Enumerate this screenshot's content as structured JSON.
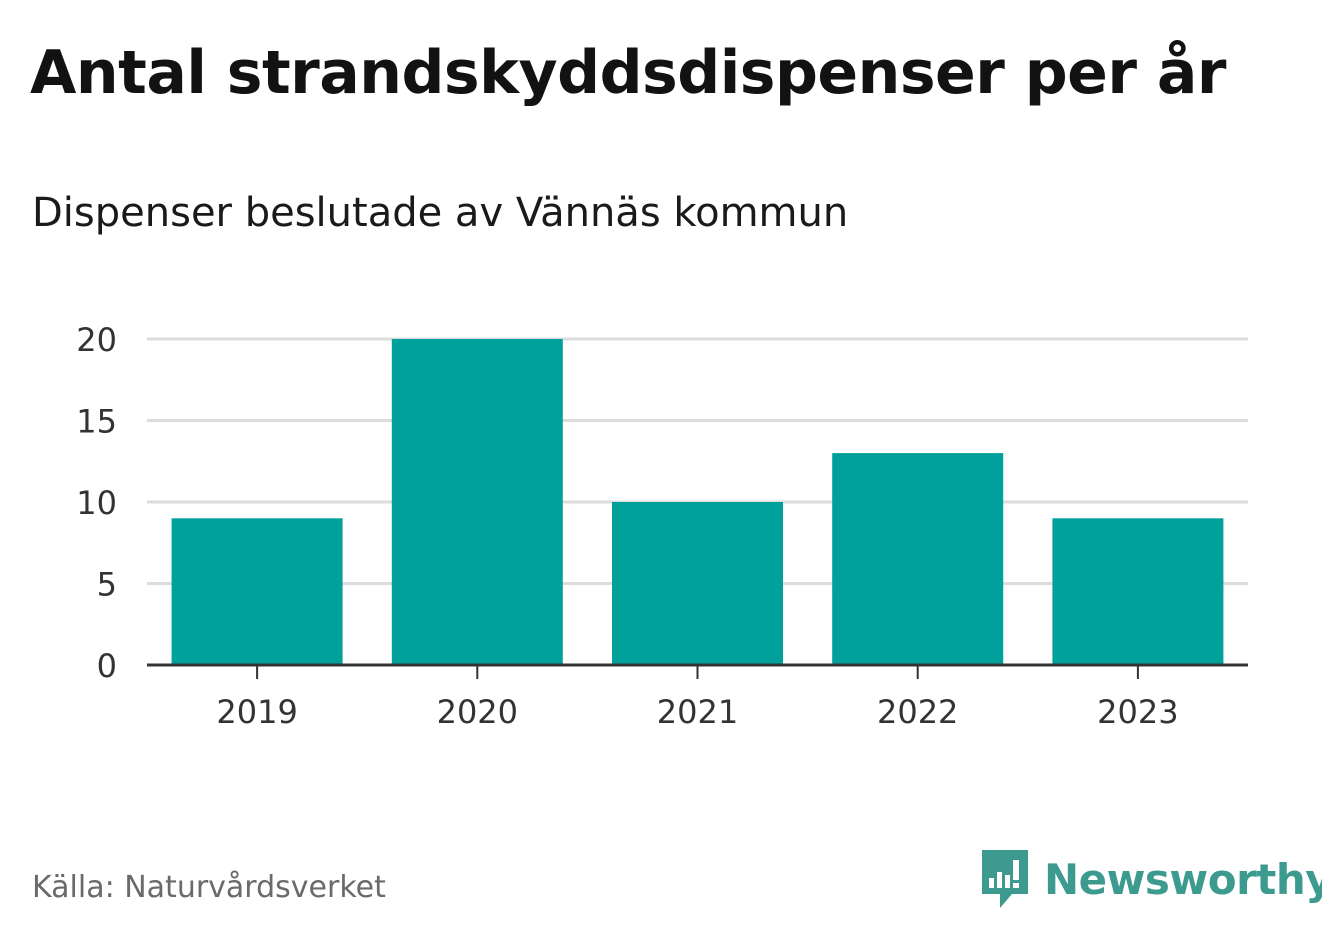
{
  "header": {
    "title": "Antal strandskyddsdispenser per år",
    "subtitle": "Dispenser beslutade av Vännäs kommun"
  },
  "footer": {
    "source": "Källa: Naturvårdsverket",
    "brand": "Newsworthy",
    "brand_color": "#3d9a8f"
  },
  "chart_data": {
    "type": "bar",
    "title": "Antal strandskyddsdispenser per år",
    "subtitle": "Dispenser beslutade av Vännäs kommun",
    "xlabel": "",
    "ylabel": "",
    "categories": [
      "2019",
      "2020",
      "2021",
      "2022",
      "2023"
    ],
    "values": [
      9,
      20,
      10,
      13,
      9
    ],
    "ylim": [
      0,
      20
    ],
    "yticks": [
      0,
      5,
      10,
      15,
      20
    ],
    "grid": true,
    "bar_color": "#00a19a"
  }
}
